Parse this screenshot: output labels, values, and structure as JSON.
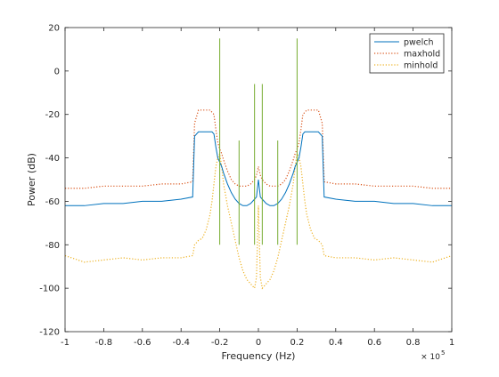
{
  "chart_data": {
    "type": "line",
    "title": "",
    "xlabel": "Frequency (Hz)",
    "ylabel": "Power (dB)",
    "x_multiplier_label": "× 10",
    "x_multiplier_exponent": "5",
    "xlim": [
      -1,
      1
    ],
    "ylim": [
      -120,
      20
    ],
    "x_ticks": [
      -1,
      -0.8,
      -0.6,
      -0.4,
      -0.2,
      0,
      0.2,
      0.4,
      0.6,
      0.8,
      1
    ],
    "x_tick_labels": [
      "-1",
      "-0.8",
      "-0.6",
      "-0.4",
      "-0.2",
      "0",
      "0.2",
      "0.4",
      "0.6",
      "0.8",
      "1"
    ],
    "y_ticks": [
      -120,
      -100,
      -80,
      -60,
      -40,
      -20,
      0,
      20
    ],
    "y_tick_labels": [
      "-120",
      "-100",
      "-80",
      "-60",
      "-40",
      "-20",
      "0",
      "20"
    ],
    "grid": false,
    "legend_position": "top-right",
    "series": [
      {
        "name": "pwelch",
        "color": "#0072bd",
        "style": "solid",
        "x": [
          -1,
          -0.9,
          -0.8,
          -0.7,
          -0.6,
          -0.5,
          -0.4,
          -0.34,
          -0.33,
          -0.31,
          -0.29,
          -0.27,
          -0.25,
          -0.24,
          -0.23,
          -0.22,
          -0.21,
          -0.2,
          -0.19,
          -0.18,
          -0.16,
          -0.14,
          -0.12,
          -0.1,
          -0.08,
          -0.06,
          -0.04,
          -0.02,
          -0.01,
          0,
          0.01,
          0.02,
          0.04,
          0.06,
          0.08,
          0.1,
          0.12,
          0.14,
          0.16,
          0.18,
          0.19,
          0.2,
          0.21,
          0.22,
          0.23,
          0.24,
          0.25,
          0.27,
          0.29,
          0.31,
          0.33,
          0.34,
          0.4,
          0.5,
          0.6,
          0.7,
          0.8,
          0.9,
          1
        ],
        "y": [
          -62,
          -62,
          -61,
          -61,
          -60,
          -60,
          -59,
          -58,
          -30,
          -28,
          -28,
          -28,
          -28,
          -28,
          -29,
          -35,
          -40,
          -42,
          -44,
          -47,
          -52,
          -56,
          -59,
          -61,
          -62,
          -62,
          -61,
          -59,
          -58,
          -50,
          -58,
          -59,
          -61,
          -62,
          -62,
          -61,
          -59,
          -56,
          -52,
          -47,
          -44,
          -42,
          -40,
          -35,
          -29,
          -28,
          -28,
          -28,
          -28,
          -28,
          -30,
          -58,
          -59,
          -60,
          -60,
          -61,
          -61,
          -62,
          -62
        ]
      },
      {
        "name": "maxhold",
        "color": "#d95319",
        "style": "dotted",
        "x": [
          -1,
          -0.9,
          -0.8,
          -0.7,
          -0.6,
          -0.5,
          -0.4,
          -0.34,
          -0.33,
          -0.31,
          -0.29,
          -0.27,
          -0.25,
          -0.24,
          -0.23,
          -0.22,
          -0.21,
          -0.2,
          -0.19,
          -0.18,
          -0.16,
          -0.14,
          -0.12,
          -0.1,
          -0.08,
          -0.06,
          -0.04,
          -0.02,
          -0.01,
          0,
          0.01,
          0.02,
          0.04,
          0.06,
          0.08,
          0.1,
          0.12,
          0.14,
          0.16,
          0.18,
          0.19,
          0.2,
          0.21,
          0.22,
          0.23,
          0.24,
          0.25,
          0.27,
          0.29,
          0.31,
          0.33,
          0.34,
          0.4,
          0.5,
          0.6,
          0.7,
          0.8,
          0.9,
          1
        ],
        "y": [
          -54,
          -54,
          -53,
          -53,
          -53,
          -52,
          -52,
          -51,
          -24,
          -18,
          -18,
          -18,
          -18,
          -19,
          -20,
          -27,
          -33,
          -36,
          -38,
          -41,
          -46,
          -50,
          -52,
          -53,
          -53,
          -53,
          -52,
          -50,
          -48,
          -44,
          -48,
          -50,
          -52,
          -53,
          -53,
          -53,
          -52,
          -50,
          -46,
          -41,
          -38,
          -36,
          -33,
          -27,
          -20,
          -19,
          -18,
          -18,
          -18,
          -18,
          -24,
          -51,
          -52,
          -52,
          -53,
          -53,
          -53,
          -54,
          -54
        ]
      },
      {
        "name": "minhold",
        "color": "#edb120",
        "style": "dotted",
        "x": [
          -1,
          -0.9,
          -0.8,
          -0.7,
          -0.6,
          -0.5,
          -0.4,
          -0.34,
          -0.33,
          -0.31,
          -0.29,
          -0.27,
          -0.25,
          -0.24,
          -0.23,
          -0.22,
          -0.21,
          -0.2,
          -0.19,
          -0.18,
          -0.16,
          -0.14,
          -0.12,
          -0.1,
          -0.08,
          -0.06,
          -0.04,
          -0.02,
          -0.01,
          0,
          0.01,
          0.02,
          0.04,
          0.06,
          0.08,
          0.1,
          0.12,
          0.14,
          0.16,
          0.18,
          0.19,
          0.2,
          0.21,
          0.22,
          0.23,
          0.24,
          0.25,
          0.27,
          0.29,
          0.31,
          0.33,
          0.34,
          0.4,
          0.5,
          0.6,
          0.7,
          0.8,
          0.9,
          1
        ],
        "y": [
          -85,
          -88,
          -87,
          -86,
          -87,
          -86,
          -86,
          -85,
          -80,
          -78,
          -77,
          -73,
          -66,
          -60,
          -52,
          -44,
          -40,
          -38,
          -44,
          -52,
          -62,
          -70,
          -78,
          -86,
          -92,
          -96,
          -98,
          -100,
          -95,
          -62,
          -95,
          -100,
          -98,
          -96,
          -92,
          -86,
          -78,
          -70,
          -62,
          -52,
          -44,
          -38,
          -40,
          -44,
          -52,
          -60,
          -66,
          -73,
          -77,
          -78,
          -80,
          -85,
          -86,
          -86,
          -87,
          -86,
          -87,
          -88,
          -85
        ]
      }
    ],
    "spectral_lines": {
      "color": "#77ac30",
      "x": [
        -0.2,
        -0.1,
        -0.02,
        0.02,
        0.1,
        0.2
      ],
      "y_top": [
        15,
        -32,
        -6,
        -6,
        -32,
        15
      ]
    }
  }
}
